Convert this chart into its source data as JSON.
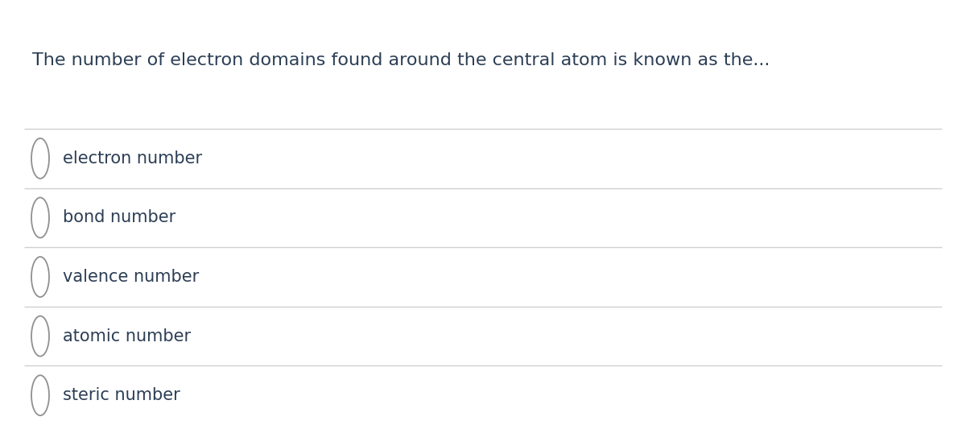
{
  "question": "The number of electron domains found around the central atom is known as the...",
  "options": [
    "electron number",
    "bond number",
    "valence number",
    "atomic number",
    "steric number"
  ],
  "bg_color": "#ffffff",
  "question_color": "#2c3e55",
  "option_color": "#2c3e55",
  "line_color": "#d0d0d0",
  "circle_color": "#909090",
  "question_fontsize": 16,
  "option_fontsize": 15,
  "fig_width": 12.0,
  "fig_height": 5.28,
  "dpi": 100
}
